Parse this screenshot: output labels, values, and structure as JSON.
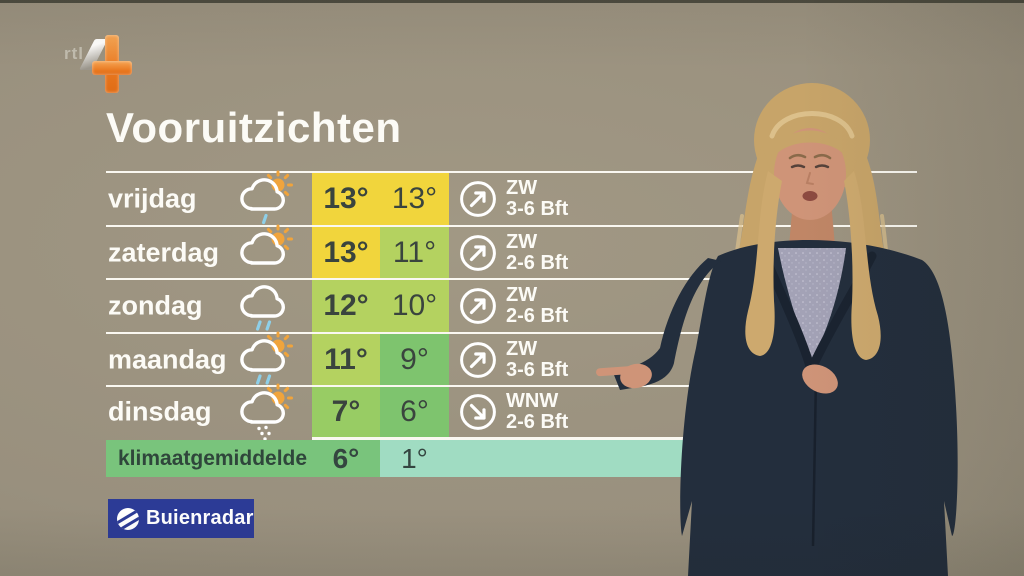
{
  "channel": {
    "rtl_label": "rtl",
    "number_label": "4",
    "name": "RTL 4"
  },
  "title": "Vooruitzichten",
  "forecast": {
    "rows": [
      {
        "day": "vrijdag",
        "icon": "sun-cloud-shower-icon",
        "max": "13°",
        "min": "13°",
        "max_bg": "#f1d53c",
        "min_bg": "#f1d53c",
        "wind_dir": "ZW",
        "wind_force": "3-6 Bft",
        "wind_arrow": "ne"
      },
      {
        "day": "zaterdag",
        "icon": "sun-cloud-icon",
        "max": "13°",
        "min": "11°",
        "max_bg": "#f1d53c",
        "min_bg": "#b4d260",
        "wind_dir": "ZW",
        "wind_force": "2-6 Bft",
        "wind_arrow": "ne"
      },
      {
        "day": "zondag",
        "icon": "cloud-rain-icon",
        "max": "12°",
        "min": "10°",
        "max_bg": "#b4d260",
        "min_bg": "#b4d260",
        "wind_dir": "ZW",
        "wind_force": "2-6 Bft",
        "wind_arrow": "ne"
      },
      {
        "day": "maandag",
        "icon": "sun-cloud-rain-icon",
        "max": "11°",
        "min": "9°",
        "max_bg": "#b4d260",
        "min_bg": "#7ec46e",
        "wind_dir": "ZW",
        "wind_force": "3-6 Bft",
        "wind_arrow": "ne"
      },
      {
        "day": "dinsdag",
        "icon": "sun-cloud-hail-icon",
        "max": "7°",
        "min": "6°",
        "max_bg": "#98cc64",
        "min_bg": "#7ec46e",
        "wind_dir": "WNW",
        "wind_force": "2-6 Bft",
        "wind_arrow": "se"
      }
    ],
    "climate": {
      "label": "klimaatgemiddelde",
      "max": "6°",
      "min": "1°",
      "max_bg": "#79c47c",
      "min_bg": "#a0dcc2"
    }
  },
  "branding": {
    "buienradar_label": "Buienradar"
  },
  "colors": {
    "background": "#99907e",
    "row_line": "#faf8f1",
    "temp_text": "#3a443e",
    "yellow_cell": "#f1d53c",
    "light_green_cell": "#b4d260",
    "green_cell": "#7ec46e",
    "climate_green": "#79c47c",
    "climate_mint": "#a0dcc2",
    "buienradar_blue": "#2c3b96",
    "rtl_orange": "#e8771f",
    "sun_orange": "#f0a43c",
    "rain_blue": "#8ecfe8"
  }
}
